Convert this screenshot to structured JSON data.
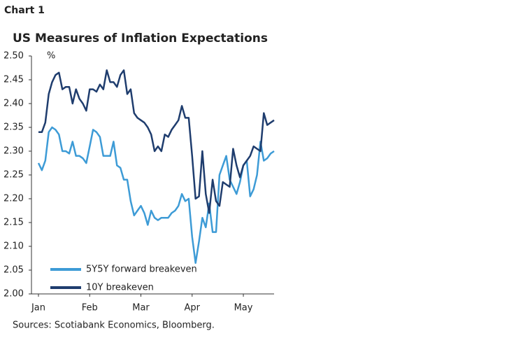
{
  "chart_label": "Chart 1",
  "chart_data": {
    "type": "line",
    "title": "US Measures of Inflation Expectations",
    "y_unit": "%",
    "source": "Sources: Scotiabank Economics, Bloomberg.",
    "categories": [
      "Jan",
      null,
      null,
      null,
      null,
      null,
      null,
      null,
      null,
      null,
      null,
      null,
      null,
      null,
      null,
      "Feb",
      null,
      null,
      null,
      null,
      null,
      null,
      null,
      null,
      null,
      null,
      null,
      null,
      null,
      null,
      "Mar",
      null,
      null,
      null,
      null,
      null,
      null,
      null,
      null,
      null,
      null,
      null,
      null,
      null,
      null,
      "Apr",
      null,
      null,
      null,
      null,
      null,
      null,
      null,
      null,
      null,
      null,
      null,
      null,
      null,
      null,
      "May",
      null,
      null,
      null,
      null,
      null,
      null,
      null,
      null,
      null
    ],
    "ylim": [
      2.0,
      2.5
    ],
    "yticks": [
      {
        "value": 2.0,
        "label": "2.00"
      },
      {
        "value": 2.05,
        "label": "2.05"
      },
      {
        "value": 2.1,
        "label": "2.10"
      },
      {
        "value": 2.15,
        "label": "2.15"
      },
      {
        "value": 2.2,
        "label": "2.20"
      },
      {
        "value": 2.25,
        "label": "2.25"
      },
      {
        "value": 2.3,
        "label": "2.30"
      },
      {
        "value": 2.35,
        "label": "2.35"
      },
      {
        "value": 2.4,
        "label": "2.40"
      },
      {
        "value": 2.45,
        "label": "2.45"
      },
      {
        "value": 2.5,
        "label": "2.50"
      }
    ],
    "legend": "lower-left",
    "series": [
      {
        "name": "5Y5Y forward breakeven",
        "color": "#3d9bd6",
        "values": [
          2.275,
          2.26,
          2.28,
          2.34,
          2.35,
          2.345,
          2.335,
          2.3,
          2.3,
          2.295,
          2.32,
          2.29,
          2.29,
          2.285,
          2.275,
          2.31,
          2.345,
          2.34,
          2.33,
          2.29,
          2.29,
          2.29,
          2.32,
          2.27,
          2.265,
          2.24,
          2.24,
          2.195,
          2.165,
          2.175,
          2.185,
          2.17,
          2.145,
          2.175,
          2.16,
          2.155,
          2.16,
          2.16,
          2.16,
          2.17,
          2.175,
          2.185,
          2.21,
          2.195,
          2.2,
          2.12,
          2.065,
          2.11,
          2.16,
          2.14,
          2.19,
          2.13,
          2.13,
          2.25,
          2.27,
          2.29,
          2.24,
          2.225,
          2.21,
          2.235,
          2.27,
          2.28,
          2.205,
          2.22,
          2.25,
          2.32,
          2.28,
          2.285,
          2.295,
          2.3
        ]
      },
      {
        "name": "10Y breakeven",
        "color": "#1f3d6e",
        "values": [
          2.34,
          2.34,
          2.36,
          2.42,
          2.445,
          2.46,
          2.465,
          2.43,
          2.435,
          2.435,
          2.4,
          2.43,
          2.41,
          2.4,
          2.385,
          2.43,
          2.43,
          2.425,
          2.44,
          2.43,
          2.47,
          2.445,
          2.445,
          2.435,
          2.46,
          2.47,
          2.42,
          2.43,
          2.38,
          2.37,
          2.365,
          2.36,
          2.35,
          2.335,
          2.3,
          2.31,
          2.3,
          2.335,
          2.33,
          2.345,
          2.355,
          2.365,
          2.395,
          2.37,
          2.37,
          2.29,
          2.2,
          2.205,
          2.3,
          2.21,
          2.17,
          2.24,
          2.195,
          2.185,
          2.235,
          2.23,
          2.225,
          2.305,
          2.27,
          2.245,
          2.27,
          2.28,
          2.29,
          2.31,
          2.305,
          2.3,
          2.38,
          2.355,
          2.36,
          2.365
        ]
      }
    ]
  }
}
